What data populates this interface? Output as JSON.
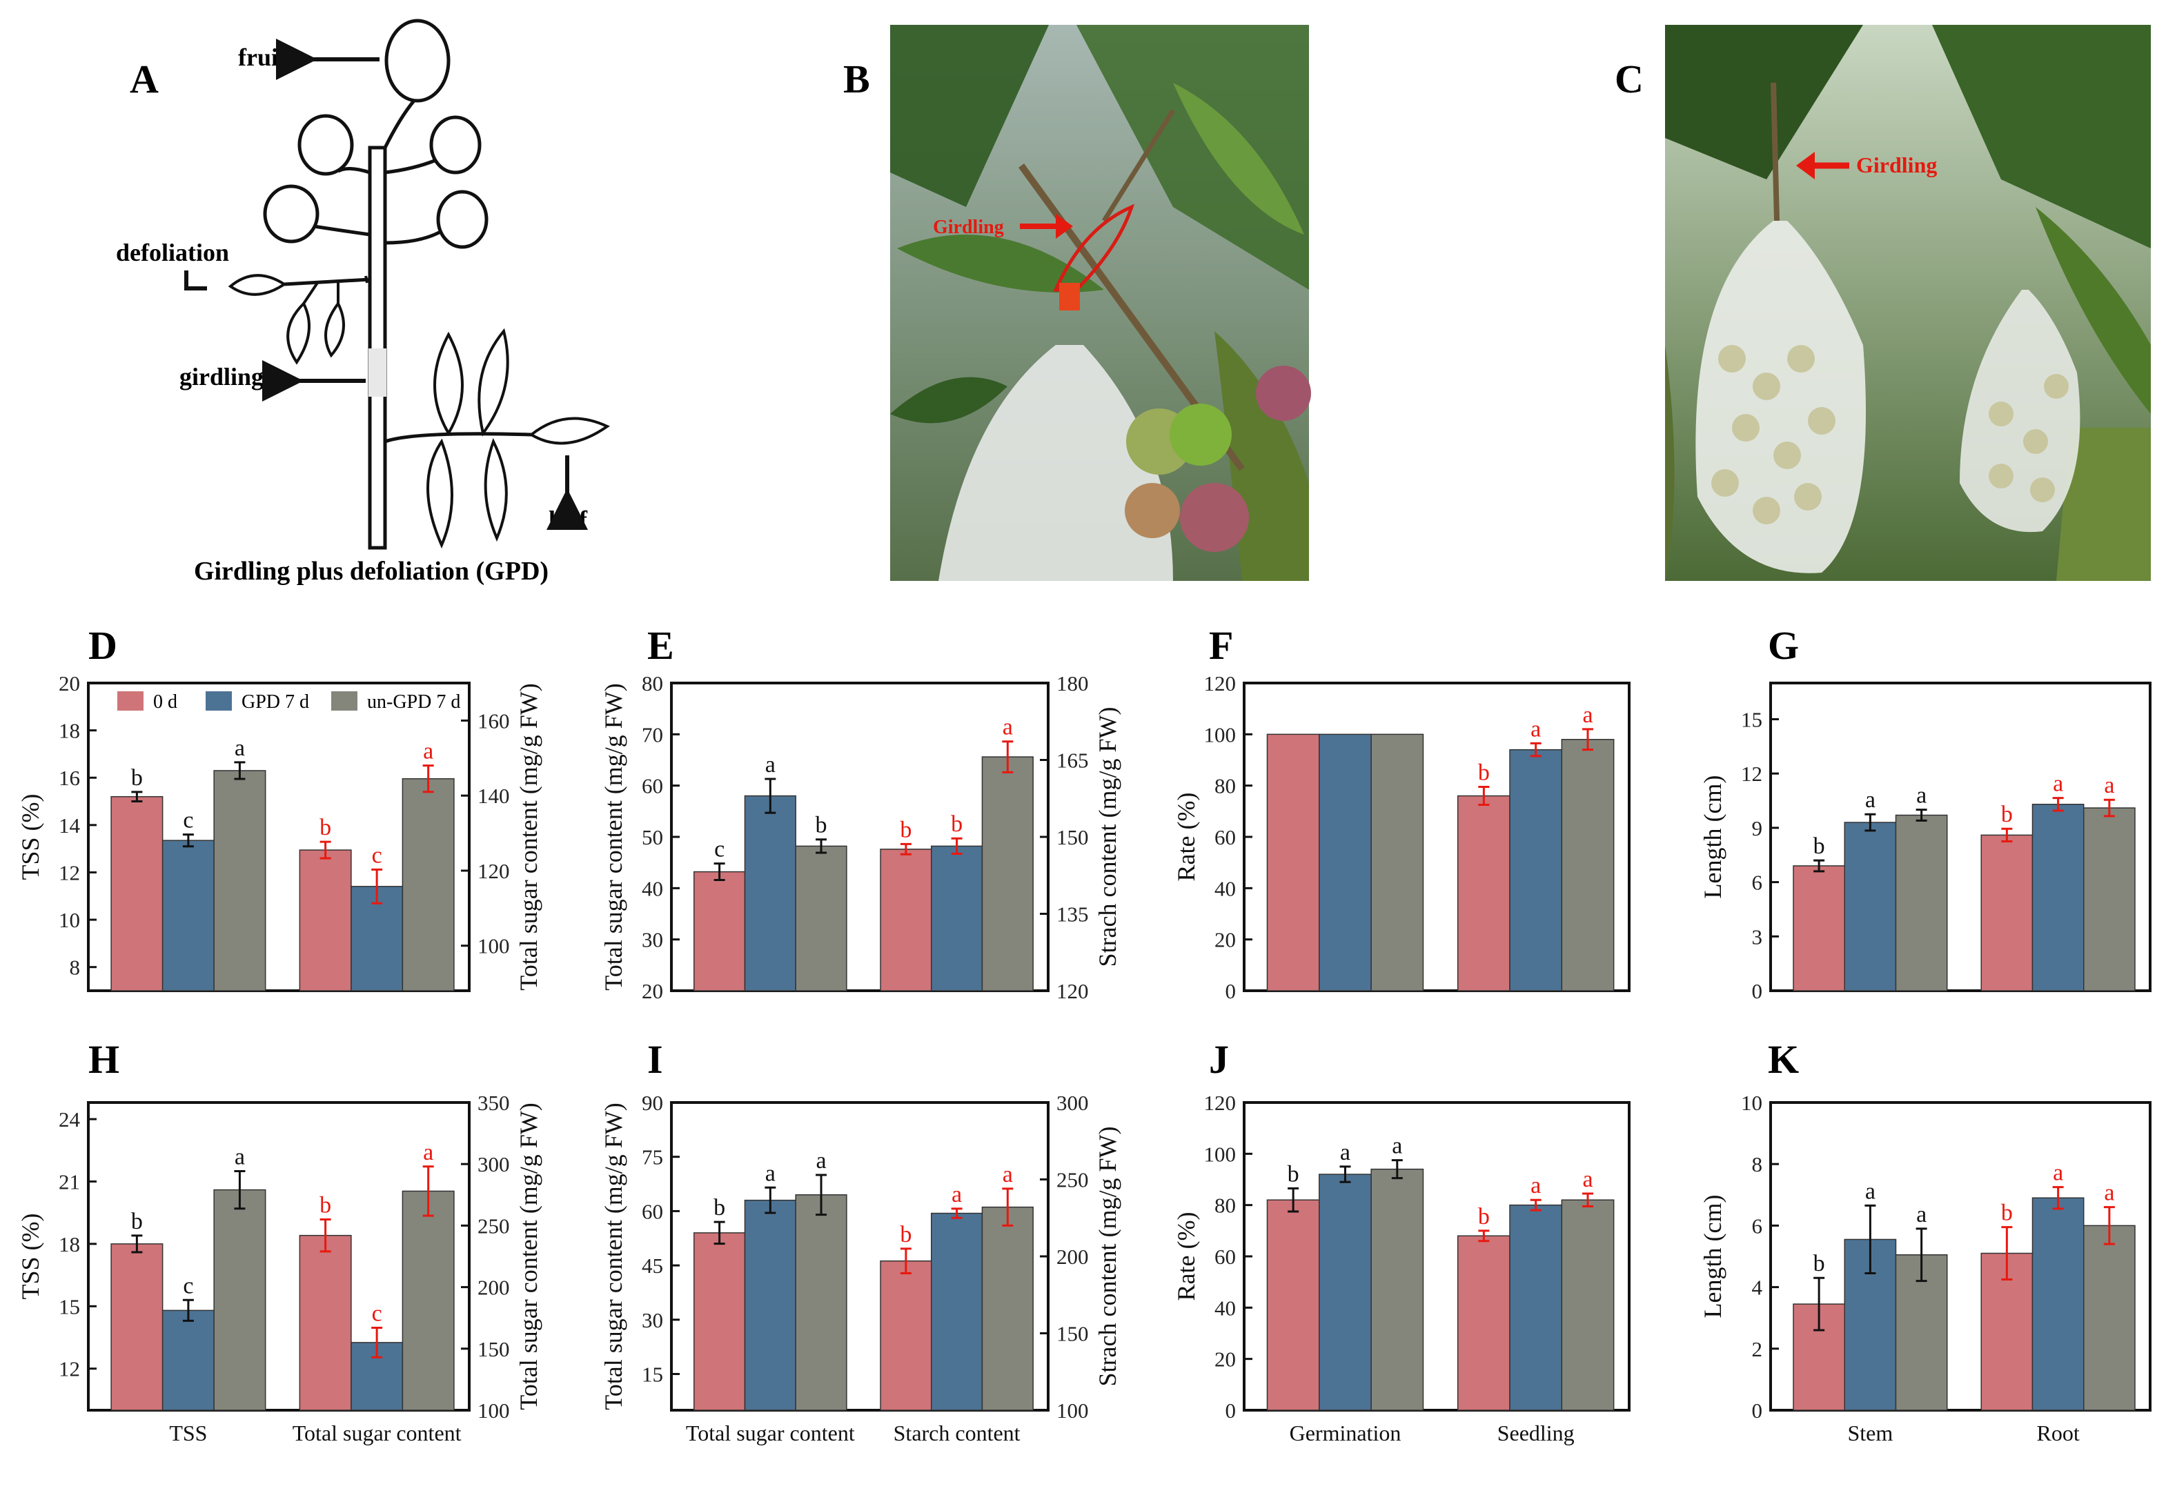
{
  "colors": {
    "day0": "#cf7478",
    "gpd7": "#4d7394",
    "ungpd7": "#84867c",
    "letter_black": "#111111",
    "letter_red": "#e8190f",
    "girdling_arrow": "#e41a10"
  },
  "panel_letters": {
    "A": "A",
    "B": "B",
    "C": "C",
    "D": "D",
    "E": "E",
    "F": "F",
    "G": "G",
    "H": "H",
    "I": "I",
    "J": "J",
    "K": "K"
  },
  "diagram": {
    "fruit": "fruit",
    "defoliation": "defoliation",
    "girdling": "girdling",
    "leaf": "leaf",
    "caption": "Girdling plus defoliation (GPD)"
  },
  "photos": {
    "B_label": "Girdling",
    "C_label": "Girdling"
  },
  "legend": [
    "0 d",
    "GPD 7 d",
    "un-GPD 7 d"
  ],
  "chart_data": [
    {
      "id": "D",
      "type": "bar",
      "group_labels": [
        "",
        ""
      ],
      "left_axis": {
        "label": "TSS (%)",
        "min": 7,
        "max": 20,
        "ticks": [
          8,
          10,
          12,
          14,
          16,
          18,
          20
        ]
      },
      "right_axis": {
        "label": "Total sugar content (mg/g FW)",
        "min": 88,
        "max": 170,
        "ticks": [
          100,
          120,
          140,
          160
        ]
      },
      "groups": [
        {
          "axis": "left",
          "letter_color": "black",
          "values": [
            15.2,
            13.35,
            16.3
          ],
          "errors": [
            0.2,
            0.25,
            0.35
          ],
          "letters": [
            "b",
            "c",
            "a"
          ]
        },
        {
          "axis": "right",
          "letter_color": "red",
          "values": [
            125.5,
            115.8,
            144.5
          ],
          "errors": [
            2.2,
            4.5,
            3.5
          ],
          "letters": [
            "b",
            "c",
            "a"
          ]
        }
      ]
    },
    {
      "id": "E",
      "type": "bar",
      "group_labels": [
        "",
        ""
      ],
      "left_axis": {
        "label": "Total sugar content (mg/g FW)",
        "min": 20,
        "max": 80,
        "ticks": [
          20,
          30,
          40,
          50,
          60,
          70,
          80
        ]
      },
      "right_axis": {
        "label": "Strach content (mg/g FW)",
        "min": 120,
        "max": 180,
        "ticks": [
          120,
          135,
          150,
          165,
          180
        ]
      },
      "groups": [
        {
          "axis": "left",
          "letter_color": "black",
          "values": [
            43.2,
            58.0,
            48.2
          ],
          "errors": [
            1.6,
            3.3,
            1.3
          ],
          "letters": [
            "c",
            "a",
            "b"
          ]
        },
        {
          "axis": "right",
          "letter_color": "red",
          "values": [
            147.6,
            148.2,
            165.6
          ],
          "errors": [
            1.0,
            1.5,
            3.0
          ],
          "letters": [
            "b",
            "b",
            "a"
          ]
        }
      ]
    },
    {
      "id": "F",
      "type": "bar",
      "group_labels": [
        "",
        ""
      ],
      "left_axis": {
        "label": "Rate (%)",
        "min": 0,
        "max": 120,
        "ticks": [
          0,
          20,
          40,
          60,
          80,
          100,
          120
        ]
      },
      "groups": [
        {
          "axis": "left",
          "letter_color": "black",
          "values": [
            100,
            100,
            100
          ],
          "errors": [
            0,
            0,
            0
          ],
          "letters": [
            "",
            "",
            ""
          ]
        },
        {
          "axis": "left",
          "letter_color": "red",
          "values": [
            76,
            94,
            98
          ],
          "errors": [
            3.5,
            2.5,
            4.0
          ],
          "letters": [
            "b",
            "a",
            "a"
          ]
        }
      ]
    },
    {
      "id": "G",
      "type": "bar",
      "group_labels": [
        "",
        ""
      ],
      "left_axis": {
        "label": "Length (cm)",
        "min": 0,
        "max": 17,
        "ticks": [
          0,
          3,
          6,
          9,
          12,
          15
        ]
      },
      "groups": [
        {
          "axis": "left",
          "letter_color": "black",
          "values": [
            6.9,
            9.3,
            9.7
          ],
          "errors": [
            0.3,
            0.45,
            0.3
          ],
          "letters": [
            "b",
            "a",
            "a"
          ]
        },
        {
          "axis": "left",
          "letter_color": "red",
          "values": [
            8.6,
            10.3,
            10.1
          ],
          "errors": [
            0.35,
            0.35,
            0.45
          ],
          "letters": [
            "b",
            "a",
            "a"
          ]
        }
      ]
    },
    {
      "id": "H",
      "type": "bar",
      "group_labels": [
        "TSS",
        "Total sugar content"
      ],
      "left_axis": {
        "label": "TSS (%)",
        "min": 10,
        "max": 24.8,
        "ticks": [
          12,
          15,
          18,
          21,
          24
        ]
      },
      "right_axis": {
        "label": "Total sugar content (mg/g FW)",
        "min": 100,
        "max": 350,
        "ticks": [
          100,
          150,
          200,
          250,
          300,
          350
        ]
      },
      "groups": [
        {
          "axis": "left",
          "letter_color": "black",
          "values": [
            18.0,
            14.8,
            20.6
          ],
          "errors": [
            0.4,
            0.5,
            0.9
          ],
          "letters": [
            "b",
            "c",
            "a"
          ]
        },
        {
          "axis": "right",
          "letter_color": "red",
          "values": [
            242,
            155,
            278
          ],
          "errors": [
            13,
            12,
            20
          ],
          "letters": [
            "b",
            "c",
            "a"
          ]
        }
      ]
    },
    {
      "id": "I",
      "type": "bar",
      "group_labels": [
        "Total sugar content",
        "Starch content"
      ],
      "left_axis": {
        "label": "Total  sugar content (mg/g FW)",
        "min": 5,
        "max": 90,
        "ticks": [
          15,
          30,
          45,
          60,
          75,
          90
        ]
      },
      "right_axis": {
        "label": "Strach content (mg/g FW)",
        "min": 100,
        "max": 300,
        "ticks": [
          100,
          150,
          200,
          250,
          300
        ]
      },
      "groups": [
        {
          "axis": "left",
          "letter_color": "black",
          "values": [
            54,
            63,
            64.5
          ],
          "errors": [
            3,
            3.5,
            5.5
          ],
          "letters": [
            "b",
            "a",
            "a"
          ]
        },
        {
          "axis": "right",
          "letter_color": "red",
          "values": [
            197,
            228,
            232
          ],
          "errors": [
            8,
            3,
            12
          ],
          "letters": [
            "b",
            "a",
            "a"
          ]
        }
      ]
    },
    {
      "id": "J",
      "type": "bar",
      "group_labels": [
        "Germination",
        "Seedling"
      ],
      "left_axis": {
        "label": "Rate (%)",
        "min": 0,
        "max": 120,
        "ticks": [
          0,
          20,
          40,
          60,
          80,
          100,
          120
        ]
      },
      "groups": [
        {
          "axis": "left",
          "letter_color": "black",
          "values": [
            82,
            92,
            94
          ],
          "errors": [
            4.5,
            3,
            3.5
          ],
          "letters": [
            "b",
            "a",
            "a"
          ]
        },
        {
          "axis": "left",
          "letter_color": "red",
          "values": [
            68,
            80,
            82
          ],
          "errors": [
            2,
            2,
            2.5
          ],
          "letters": [
            "b",
            "a",
            "a"
          ]
        }
      ]
    },
    {
      "id": "K",
      "type": "bar",
      "group_labels": [
        "Stem",
        "Root"
      ],
      "left_axis": {
        "label": "Length (cm)",
        "min": 0,
        "max": 10,
        "ticks": [
          0,
          2,
          4,
          6,
          8,
          10
        ]
      },
      "groups": [
        {
          "axis": "left",
          "letter_color": "black",
          "values": [
            3.45,
            5.55,
            5.05
          ],
          "errors": [
            0.85,
            1.1,
            0.85
          ],
          "letters": [
            "b",
            "a",
            "a"
          ]
        },
        {
          "axis": "left",
          "letter_color": "red",
          "values": [
            5.1,
            6.9,
            6.0
          ],
          "errors": [
            0.85,
            0.35,
            0.6
          ],
          "letters": [
            "b",
            "a",
            "a"
          ]
        }
      ]
    }
  ]
}
